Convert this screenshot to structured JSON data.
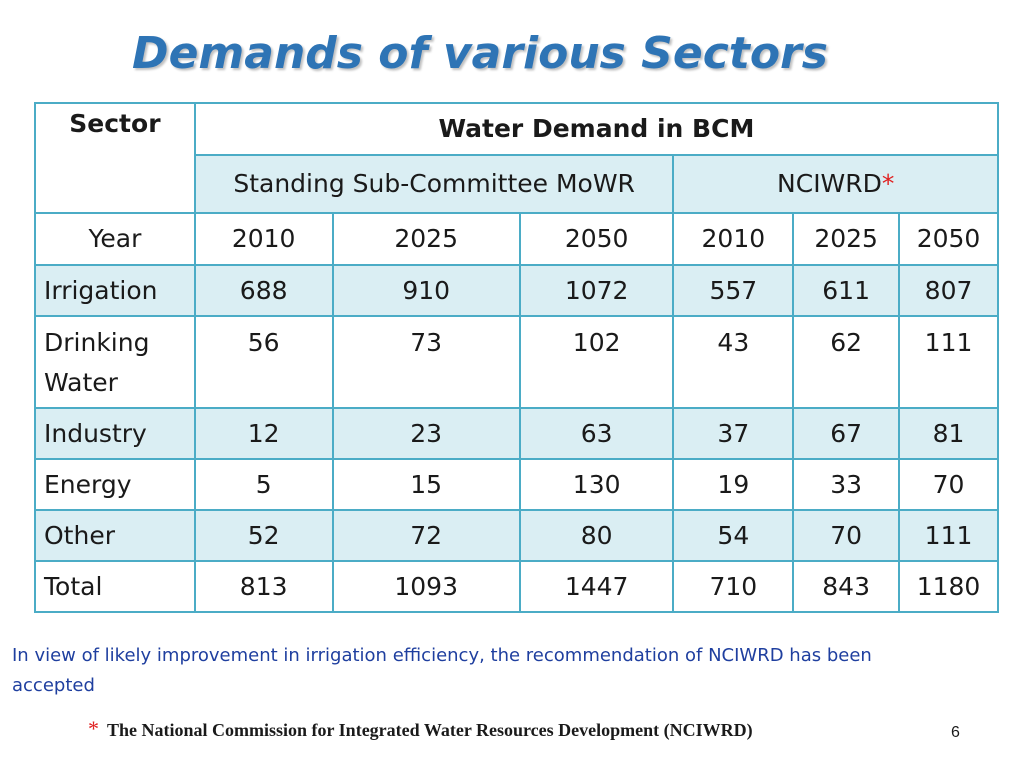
{
  "title": "Demands of various Sectors",
  "table": {
    "header": {
      "sector": "Sector",
      "water_demand": "Water Demand in BCM",
      "group1": "Standing Sub-Committee MoWR",
      "group2": "NCIWRD",
      "group2_mark": "*"
    },
    "year_row": {
      "label": "Year",
      "years": [
        "2010",
        "2025",
        "2050",
        "2010",
        "2025",
        "2050"
      ]
    },
    "rows": [
      {
        "sector": "Irrigation",
        "values": [
          "688",
          "910",
          "1072",
          "557",
          "611",
          "807"
        ]
      },
      {
        "sector": "Drinking Water",
        "values": [
          "56",
          "73",
          "102",
          "43",
          "62",
          "111"
        ]
      },
      {
        "sector": "Industry",
        "values": [
          "12",
          "23",
          "63",
          "37",
          "67",
          "81"
        ]
      },
      {
        "sector": "Energy",
        "values": [
          "5",
          "15",
          "130",
          "19",
          "33",
          "70"
        ]
      },
      {
        "sector": "Other",
        "values": [
          "52",
          "72",
          "80",
          "54",
          "70",
          "111"
        ]
      },
      {
        "sector": "Total",
        "values": [
          "813",
          "1093",
          "1447",
          "710",
          "843",
          "1180"
        ]
      }
    ]
  },
  "note": "In view of likely improvement in irrigation efficiency, the recommendation of NCIWRD has been accepted",
  "footnote": {
    "mark": "*",
    "text": "The National Commission for Integrated Water Resources Development (NCIWRD)"
  },
  "page_number": "6",
  "colors": {
    "title": "#2E74B5",
    "border": "#4BACC6",
    "shade": "#DAEEF3",
    "note": "#1F3F9F",
    "star": "#E02020"
  }
}
